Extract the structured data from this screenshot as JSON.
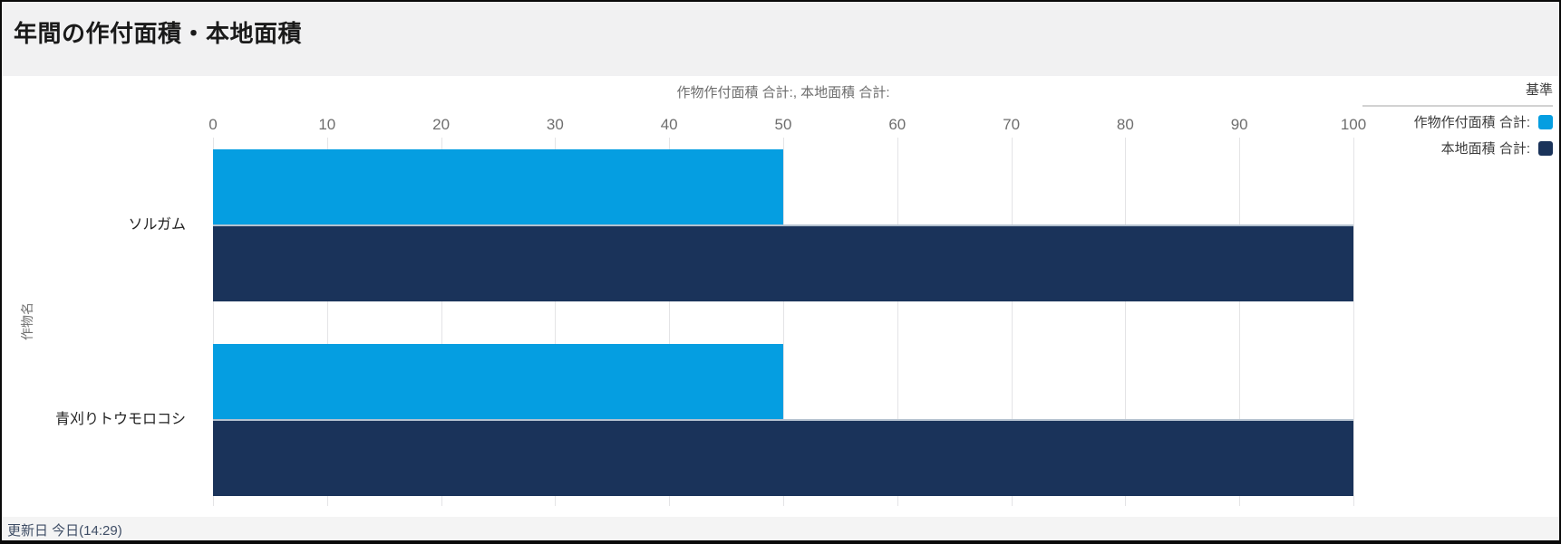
{
  "header": {
    "title": "年間の作付面積・本地面積"
  },
  "footer": {
    "updated": "更新日 今日(14:29)"
  },
  "chart_data": {
    "type": "bar",
    "orientation": "horizontal",
    "title": "年間の作付面積・本地面積",
    "axis_title": "作物作付面積 合計:, 本地面積 合計:",
    "xlabel": "作物作付面積 合計:, 本地面積 合計:",
    "ylabel": "作物名",
    "legend_header": "基準",
    "legend_position": "right",
    "grid": true,
    "xlim": [
      0,
      100
    ],
    "xticks": [
      0,
      10,
      20,
      30,
      40,
      50,
      60,
      70,
      80,
      90,
      100
    ],
    "categories": [
      "ソルガム",
      "青刈りトウモロコシ"
    ],
    "series": [
      {
        "name": "作物作付面積 合計:",
        "color": "#059ee1",
        "values": [
          50,
          50
        ]
      },
      {
        "name": "本地面積 合計:",
        "color": "#1a335a",
        "values": [
          100,
          100
        ]
      }
    ]
  }
}
